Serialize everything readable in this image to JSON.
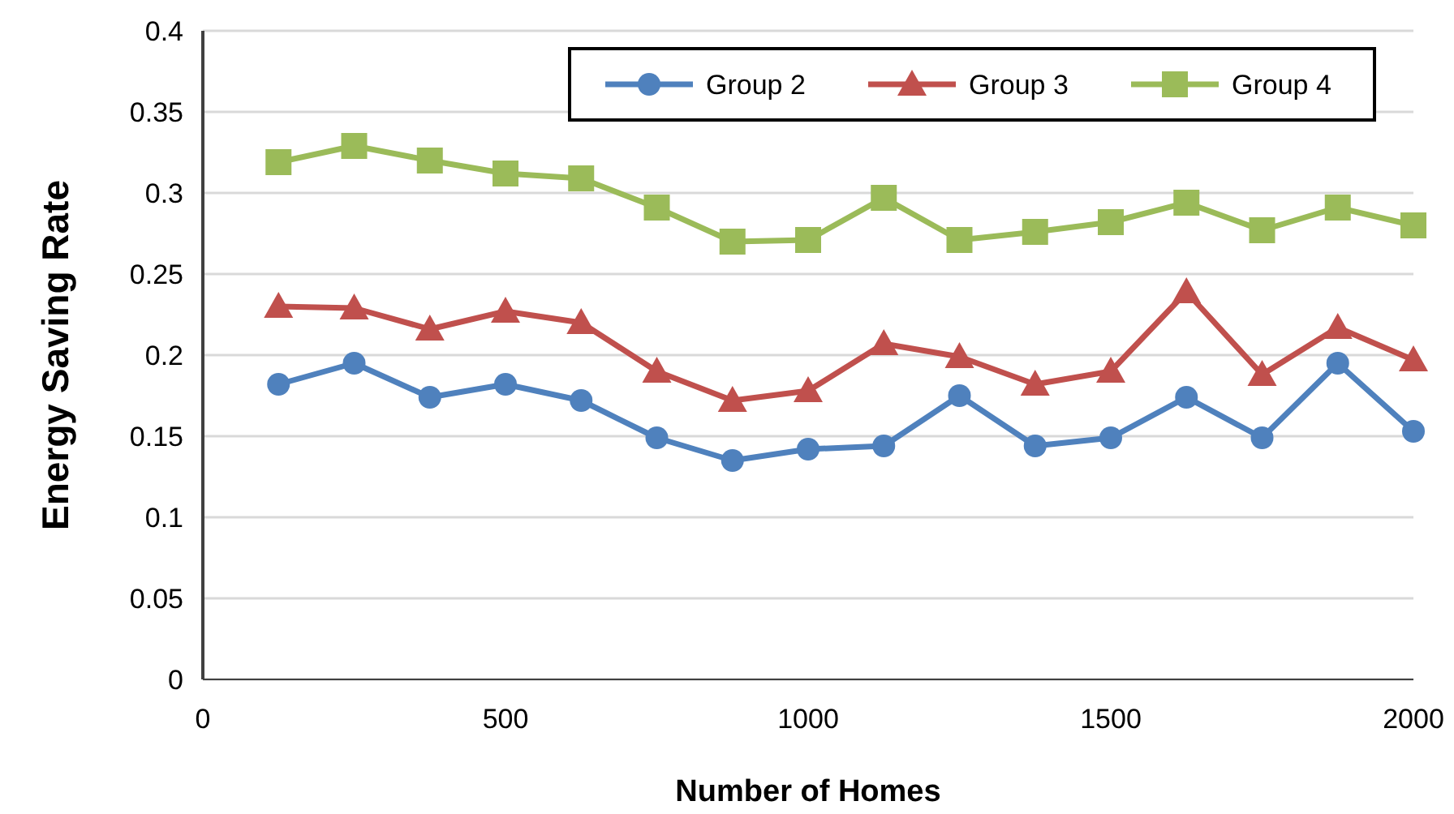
{
  "chart_data": {
    "type": "line",
    "xlabel": "Number of Homes",
    "ylabel": "Energy Saving Rate",
    "x": [
      125,
      250,
      375,
      500,
      625,
      750,
      875,
      1000,
      1125,
      1250,
      1375,
      1500,
      1625,
      1750,
      1875,
      2000
    ],
    "series": [
      {
        "name": "Group 2",
        "color": "#4f81bd",
        "marker": "circle",
        "values": [
          0.182,
          0.195,
          0.174,
          0.182,
          0.172,
          0.149,
          0.135,
          0.142,
          0.144,
          0.175,
          0.144,
          0.149,
          0.174,
          0.149,
          0.195,
          0.153
        ]
      },
      {
        "name": "Group 3",
        "color": "#c0504d",
        "marker": "triangle",
        "values": [
          0.23,
          0.229,
          0.216,
          0.227,
          0.22,
          0.19,
          0.172,
          0.178,
          0.207,
          0.199,
          0.182,
          0.19,
          0.239,
          0.188,
          0.217,
          0.197
        ]
      },
      {
        "name": "Group 4",
        "color": "#9bbb59",
        "marker": "square",
        "values": [
          0.319,
          0.329,
          0.32,
          0.312,
          0.309,
          0.291,
          0.27,
          0.271,
          0.297,
          0.271,
          0.276,
          0.282,
          0.294,
          0.277,
          0.291,
          0.28
        ]
      }
    ],
    "xlim": [
      0,
      2000
    ],
    "xticks": [
      0,
      500,
      1000,
      1500,
      2000
    ],
    "ylim": [
      0,
      0.4
    ],
    "yticks": [
      0,
      0.05,
      0.1,
      0.15,
      0.2,
      0.25,
      0.3,
      0.35,
      0.4
    ],
    "grid": "y",
    "legend": "top right",
    "line_style": "solid"
  }
}
